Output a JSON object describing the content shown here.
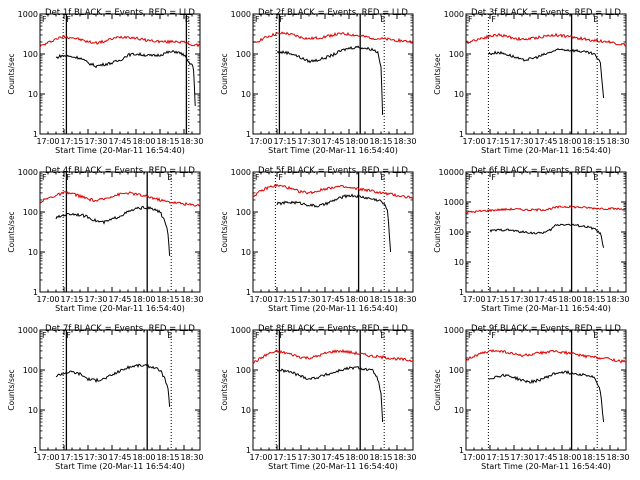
{
  "figure": {
    "colors": {
      "events": "#000000",
      "lld": "#dd0000",
      "axes": "#000000",
      "background": "#ffffff"
    }
  },
  "chart_data": [
    {
      "type": "line",
      "title": "Det 1f BLACK = Events, RED = LLD",
      "xlabel": "Start Time (20-Mar-11 16:54:40)",
      "ylabel": "Counts/sec",
      "yscale": "log",
      "ylim": [
        1,
        1000
      ],
      "xticks": [
        "17:00",
        "17:15",
        "17:30",
        "17:45",
        "18:00",
        "18:15",
        "18:30"
      ],
      "yticks": [
        "1",
        "10",
        "100",
        "1000"
      ],
      "xlim_min": [
        0,
        100
      ],
      "solid_markers_min": [
        16.5,
        91.5
      ],
      "dotted_markers_min": [
        14.5,
        93
      ],
      "flag_labels": [
        "F",
        "F",
        "E"
      ],
      "series": [
        {
          "name": "LLD",
          "color": "#dd0000",
          "x": [
            0,
            5,
            10,
            15,
            20,
            25,
            30,
            35,
            40,
            45,
            50,
            55,
            60,
            65,
            70,
            75,
            80,
            85,
            90,
            95,
            100
          ],
          "values": [
            155,
            190,
            240,
            270,
            260,
            230,
            200,
            190,
            205,
            240,
            265,
            270,
            250,
            225,
            215,
            205,
            200,
            210,
            195,
            170,
            160
          ]
        },
        {
          "name": "Events",
          "color": "#000000",
          "x": [
            10,
            13,
            16,
            20,
            25,
            30,
            35,
            40,
            45,
            50,
            55,
            60,
            65,
            70,
            75,
            80,
            85,
            90,
            93,
            95,
            96,
            97
          ],
          "values": [
            80,
            90,
            90,
            85,
            80,
            60,
            50,
            55,
            60,
            70,
            95,
            100,
            95,
            90,
            95,
            110,
            115,
            95,
            60,
            55,
            40,
            5
          ]
        }
      ]
    },
    {
      "type": "line",
      "title": "Det 2f BLACK = Events, RED = LLD",
      "xlabel": "Start Time (20-Mar-11 16:54:40)",
      "ylabel": "Counts/sec",
      "yscale": "log",
      "ylim": [
        1,
        1000
      ],
      "xticks": [
        "17:00",
        "17:15",
        "17:30",
        "17:45",
        "18:00",
        "18:15",
        "18:30"
      ],
      "yticks": [
        "1",
        "10",
        "100",
        "1000"
      ],
      "xlim_min": [
        0,
        100
      ],
      "solid_markers_min": [
        16.5,
        67
      ],
      "dotted_markers_min": [
        14.5,
        82
      ],
      "flag_labels": [
        "F",
        "F",
        "E"
      ],
      "series": [
        {
          "name": "LLD",
          "color": "#dd0000",
          "x": [
            0,
            5,
            10,
            15,
            20,
            25,
            30,
            35,
            40,
            45,
            50,
            55,
            60,
            65,
            70,
            75,
            80,
            85,
            90,
            95,
            100
          ],
          "values": [
            180,
            230,
            280,
            320,
            330,
            300,
            260,
            240,
            250,
            270,
            300,
            320,
            310,
            290,
            270,
            250,
            240,
            230,
            220,
            210,
            200
          ]
        },
        {
          "name": "Events",
          "color": "#000000",
          "x": [
            15,
            20,
            25,
            30,
            35,
            40,
            45,
            50,
            55,
            60,
            65,
            70,
            75,
            78,
            80,
            81
          ],
          "values": [
            110,
            110,
            100,
            80,
            65,
            70,
            80,
            95,
            120,
            140,
            150,
            140,
            130,
            110,
            50,
            3
          ]
        }
      ]
    },
    {
      "type": "line",
      "title": "Det 3f BLACK = Events, RED = LLD",
      "xlabel": "Start Time (20-Mar-11 16:54:40)",
      "ylabel": "Counts/sec",
      "yscale": "log",
      "ylim": [
        1,
        1000
      ],
      "xticks": [
        "17:00",
        "17:15",
        "17:30",
        "17:45",
        "18:00",
        "18:15",
        "18:30"
      ],
      "yticks": [
        "1",
        "10",
        "100",
        "1000"
      ],
      "xlim_min": [
        0,
        100
      ],
      "solid_markers_min": [
        66
      ],
      "dotted_markers_min": [
        14,
        82
      ],
      "flag_labels": [
        "F",
        "F",
        "E"
      ],
      "series": [
        {
          "name": "LLD",
          "color": "#dd0000",
          "x": [
            0,
            5,
            10,
            15,
            20,
            25,
            30,
            35,
            40,
            45,
            50,
            55,
            60,
            65,
            70,
            75,
            80,
            85,
            90,
            95,
            100
          ],
          "values": [
            190,
            220,
            250,
            280,
            300,
            280,
            250,
            230,
            240,
            260,
            280,
            300,
            290,
            270,
            250,
            230,
            220,
            210,
            200,
            180,
            170
          ]
        },
        {
          "name": "Events",
          "color": "#000000",
          "x": [
            14,
            20,
            25,
            30,
            35,
            40,
            45,
            50,
            55,
            60,
            65,
            70,
            75,
            80,
            84,
            86
          ],
          "values": [
            100,
            110,
            100,
            85,
            70,
            75,
            85,
            100,
            120,
            130,
            125,
            120,
            110,
            100,
            60,
            8
          ]
        }
      ]
    },
    {
      "type": "line",
      "title": "Det 4f BLACK = Events, RED = LLD",
      "xlabel": "Start Time (20-Mar-11 16:54:40)",
      "ylabel": "Counts/sec",
      "yscale": "log",
      "ylim": [
        1,
        1000
      ],
      "xticks": [
        "17:00",
        "17:15",
        "17:30",
        "17:45",
        "18:00",
        "18:15",
        "18:30"
      ],
      "yticks": [
        "1",
        "10",
        "100",
        "1000"
      ],
      "xlim_min": [
        0,
        100
      ],
      "solid_markers_min": [
        16.5,
        67
      ],
      "dotted_markers_min": [
        14.5,
        82
      ],
      "flag_labels": [
        "F",
        "F",
        "E"
      ],
      "series": [
        {
          "name": "LLD",
          "color": "#dd0000",
          "x": [
            0,
            5,
            10,
            15,
            20,
            25,
            30,
            35,
            40,
            45,
            50,
            55,
            60,
            65,
            70,
            75,
            80,
            85,
            90,
            95,
            100
          ],
          "values": [
            180,
            220,
            260,
            300,
            290,
            250,
            210,
            190,
            210,
            250,
            280,
            300,
            280,
            250,
            230,
            200,
            180,
            170,
            160,
            150,
            150
          ]
        },
        {
          "name": "Events",
          "color": "#000000",
          "x": [
            10,
            15,
            20,
            25,
            30,
            35,
            40,
            45,
            50,
            55,
            60,
            65,
            70,
            75,
            78,
            80,
            81
          ],
          "values": [
            70,
            85,
            90,
            85,
            75,
            60,
            55,
            65,
            80,
            100,
            120,
            130,
            120,
            100,
            60,
            30,
            8
          ]
        }
      ]
    },
    {
      "type": "line",
      "title": "Det 5f BLACK = Events, RED = LLD",
      "xlabel": "Start Time (20-Mar-11 16:54:40)",
      "ylabel": "Counts/sec",
      "yscale": "log",
      "ylim": [
        1,
        1000
      ],
      "xticks": [
        "17:00",
        "17:15",
        "17:30",
        "17:45",
        "18:00",
        "18:15",
        "18:30"
      ],
      "yticks": [
        "1",
        "10",
        "100",
        "1000"
      ],
      "xlim_min": [
        0,
        100
      ],
      "solid_markers_min": [
        66
      ],
      "dotted_markers_min": [
        14,
        82
      ],
      "flag_labels": [
        "F",
        "F",
        "E"
      ],
      "series": [
        {
          "name": "LLD",
          "color": "#dd0000",
          "x": [
            0,
            5,
            10,
            15,
            20,
            25,
            30,
            35,
            40,
            45,
            50,
            55,
            60,
            65,
            70,
            75,
            80,
            85,
            90,
            95,
            100
          ],
          "values": [
            250,
            330,
            420,
            460,
            430,
            360,
            320,
            300,
            330,
            380,
            420,
            430,
            400,
            380,
            360,
            330,
            300,
            280,
            260,
            240,
            230
          ]
        },
        {
          "name": "Events",
          "color": "#000000",
          "x": [
            15,
            20,
            25,
            30,
            35,
            40,
            45,
            50,
            55,
            60,
            65,
            70,
            75,
            80,
            84,
            86
          ],
          "values": [
            160,
            170,
            175,
            165,
            150,
            140,
            155,
            190,
            230,
            260,
            250,
            230,
            210,
            190,
            120,
            10
          ]
        }
      ]
    },
    {
      "type": "line",
      "title": "Det 6f BLACK = Events, RED = LLD",
      "xlabel": "Start Time (20-Mar-11 16:54:40)",
      "ylabel": "Counts/sec",
      "yscale": "log",
      "ylim": [
        1,
        10000
      ],
      "xticks": [
        "17:00",
        "17:15",
        "17:30",
        "17:45",
        "18:00",
        "18:15",
        "18:30"
      ],
      "yticks": [
        "1",
        "10",
        "100",
        "1000",
        "10000"
      ],
      "xlim_min": [
        0,
        100
      ],
      "solid_markers_min": [
        66
      ],
      "dotted_markers_min": [
        14,
        82
      ],
      "flag_labels": [
        "F",
        "F",
        "E"
      ],
      "series": [
        {
          "name": "LLD",
          "color": "#dd0000",
          "x": [
            0,
            10,
            20,
            30,
            40,
            50,
            55,
            60,
            65,
            70,
            75,
            80,
            90,
            100
          ],
          "values": [
            450,
            500,
            550,
            580,
            540,
            560,
            640,
            700,
            690,
            670,
            650,
            620,
            600,
            580
          ]
        },
        {
          "name": "Events",
          "color": "#000000",
          "x": [
            15,
            20,
            25,
            30,
            35,
            40,
            45,
            50,
            53,
            56,
            60,
            65,
            70,
            75,
            80,
            84,
            86
          ],
          "values": [
            110,
            115,
            120,
            110,
            100,
            95,
            90,
            100,
            120,
            170,
            180,
            175,
            165,
            150,
            130,
            90,
            30
          ]
        }
      ]
    },
    {
      "type": "line",
      "title": "Det 7f BLACK = Events, RED = LLD",
      "xlabel": "Start Time (20-Mar-11 16:54:40)",
      "ylabel": "Counts/sec",
      "yscale": "log",
      "ylim": [
        1,
        1000
      ],
      "xticks": [
        "17:00",
        "17:15",
        "17:30",
        "17:45",
        "18:00",
        "18:15",
        "18:30"
      ],
      "yticks": [
        "1",
        "10",
        "100",
        "1000"
      ],
      "xlim_min": [
        0,
        100
      ],
      "solid_markers_min": [
        16.5,
        67
      ],
      "dotted_markers_min": [
        14.5,
        82
      ],
      "flag_labels": [
        "F",
        "F",
        "E"
      ],
      "series": [
        {
          "name": "Events",
          "color": "#000000",
          "x": [
            10,
            13,
            16,
            20,
            25,
            30,
            35,
            40,
            45,
            50,
            55,
            60,
            65,
            70,
            75,
            78,
            80,
            81
          ],
          "values": [
            70,
            80,
            85,
            90,
            80,
            60,
            55,
            60,
            75,
            95,
            115,
            130,
            130,
            120,
            100,
            60,
            35,
            12
          ]
        }
      ]
    },
    {
      "type": "line",
      "title": "Det 8f BLACK = Events, RED = LLD",
      "xlabel": "Start Time (20-Mar-11 16:54:40)",
      "ylabel": "Counts/sec",
      "yscale": "log",
      "ylim": [
        1,
        1000
      ],
      "xticks": [
        "17:00",
        "17:15",
        "17:30",
        "17:45",
        "18:00",
        "18:15",
        "18:30"
      ],
      "yticks": [
        "1",
        "10",
        "100",
        "1000"
      ],
      "xlim_min": [
        0,
        100
      ],
      "solid_markers_min": [
        16.5,
        67
      ],
      "dotted_markers_min": [
        14.5,
        82
      ],
      "flag_labels": [
        "F",
        "F",
        "E"
      ],
      "series": [
        {
          "name": "LLD",
          "color": "#dd0000",
          "x": [
            0,
            5,
            10,
            15,
            20,
            25,
            30,
            35,
            40,
            45,
            50,
            55,
            60,
            65,
            70,
            75,
            80,
            85,
            90,
            95,
            100
          ],
          "values": [
            150,
            200,
            260,
            290,
            270,
            240,
            210,
            200,
            220,
            260,
            290,
            300,
            280,
            260,
            240,
            220,
            210,
            200,
            190,
            180,
            170
          ]
        },
        {
          "name": "Events",
          "color": "#000000",
          "x": [
            15,
            20,
            25,
            30,
            35,
            40,
            45,
            50,
            55,
            60,
            65,
            70,
            75,
            78,
            80,
            81
          ],
          "values": [
            100,
            95,
            85,
            70,
            60,
            65,
            75,
            85,
            100,
            110,
            115,
            105,
            95,
            60,
            25,
            5
          ]
        }
      ]
    },
    {
      "type": "line",
      "title": "Det 9f BLACK = Events, RED = LLD",
      "xlabel": "Start Time (20-Mar-11 16:54:40)",
      "ylabel": "Counts/sec",
      "yscale": "log",
      "ylim": [
        1,
        1000
      ],
      "xticks": [
        "17:00",
        "17:15",
        "17:30",
        "17:45",
        "18:00",
        "18:15",
        "18:30"
      ],
      "yticks": [
        "1",
        "10",
        "100",
        "1000"
      ],
      "xlim_min": [
        0,
        100
      ],
      "solid_markers_min": [
        66
      ],
      "dotted_markers_min": [
        14,
        82
      ],
      "flag_labels": [
        "F",
        "F",
        "E"
      ],
      "series": [
        {
          "name": "LLD",
          "color": "#dd0000",
          "x": [
            0,
            5,
            10,
            15,
            20,
            25,
            30,
            35,
            40,
            45,
            50,
            55,
            60,
            65,
            70,
            75,
            80,
            85,
            90,
            95,
            100
          ],
          "values": [
            180,
            220,
            260,
            290,
            310,
            280,
            250,
            230,
            240,
            260,
            280,
            290,
            280,
            260,
            240,
            220,
            210,
            200,
            190,
            170,
            160
          ]
        },
        {
          "name": "Events",
          "color": "#000000",
          "x": [
            14,
            20,
            25,
            30,
            35,
            40,
            45,
            50,
            55,
            60,
            65,
            70,
            75,
            80,
            84,
            86
          ],
          "values": [
            60,
            70,
            75,
            65,
            55,
            50,
            55,
            65,
            80,
            90,
            85,
            80,
            75,
            65,
            30,
            5
          ]
        }
      ]
    }
  ]
}
